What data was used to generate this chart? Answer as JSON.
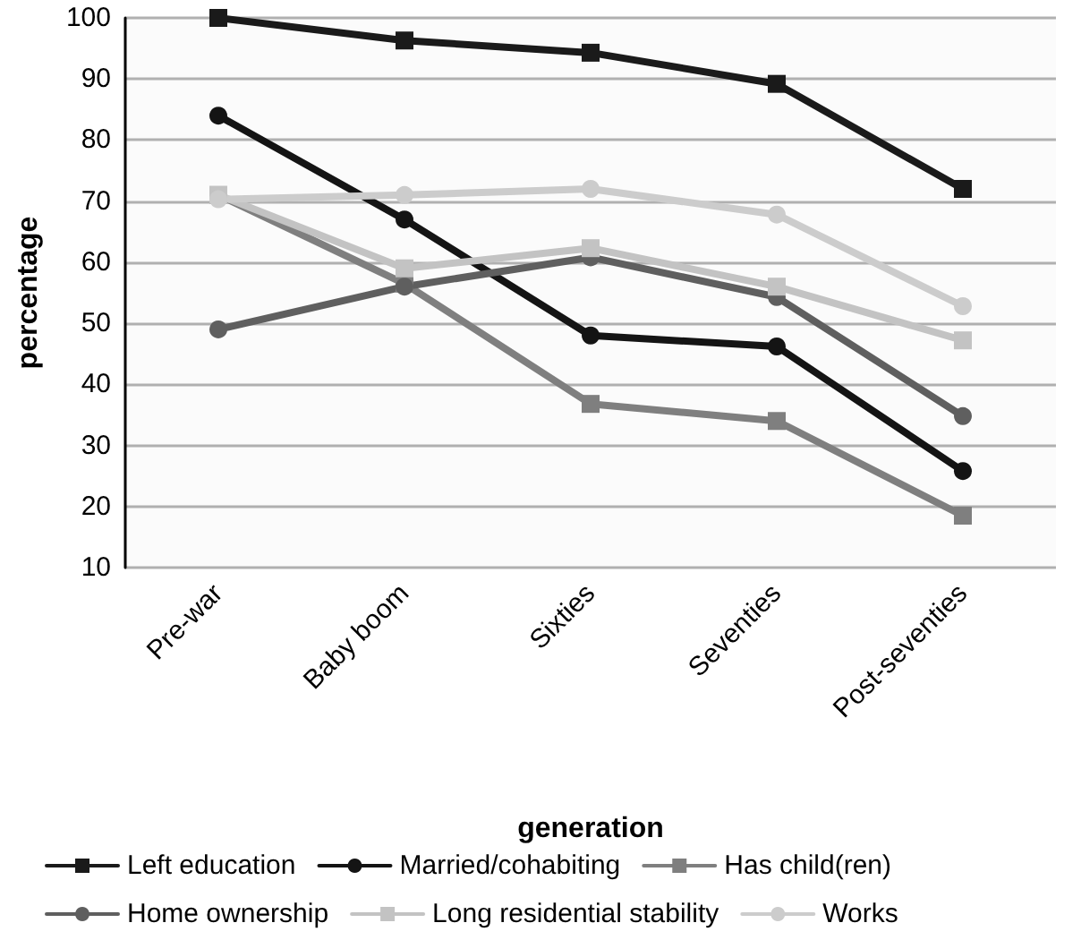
{
  "chart_data": {
    "type": "line",
    "xlabel": "generation",
    "ylabel": "percentage",
    "categories": [
      "Pre-war",
      "Baby boom",
      "Sixties",
      "Seventies",
      "Post-seventies"
    ],
    "ylim": [
      10,
      100
    ],
    "yticks": [
      10,
      20,
      30,
      40,
      50,
      60,
      70,
      80,
      90,
      100
    ],
    "grid": "y",
    "legend": "bottom",
    "line_style": "solid",
    "series": [
      {
        "name": "Left education",
        "color": "#1a1a1a",
        "marker": "square",
        "values": [
          100,
          96.3,
          94.3,
          89.2,
          72
        ]
      },
      {
        "name": "Married/cohabiting",
        "color": "#141414",
        "marker": "circle",
        "values": [
          84,
          67,
          48,
          46.2,
          25.8
        ]
      },
      {
        "name": "Has child(ren)",
        "color": "#7f7f7f",
        "marker": "square",
        "values": [
          71,
          56.5,
          36.8,
          34,
          18.5
        ]
      },
      {
        "name": "Home ownership",
        "color": "#5f5f5f",
        "marker": "circle",
        "values": [
          49,
          56,
          60.8,
          54.3,
          34.8
        ]
      },
      {
        "name": "Long residential stability",
        "color": "#c3c3c3",
        "marker": "square",
        "values": [
          71,
          59,
          62.3,
          56,
          47.2
        ]
      },
      {
        "name": "Works",
        "color": "#cccccc",
        "marker": "circle",
        "values": [
          70.3,
          71,
          72,
          67.8,
          52.8
        ]
      }
    ]
  }
}
